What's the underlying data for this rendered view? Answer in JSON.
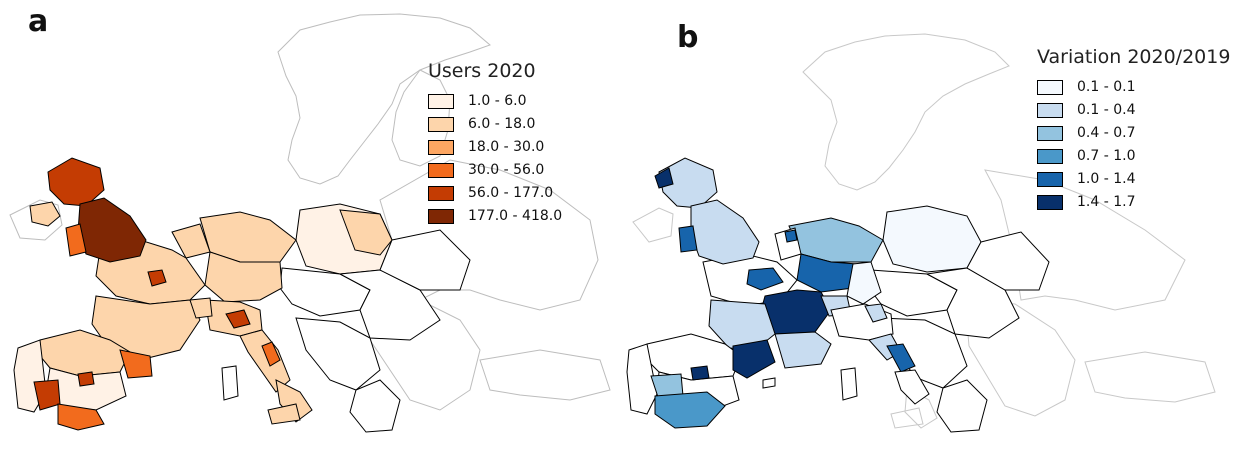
{
  "panels": [
    {
      "letter": "a",
      "legend": {
        "title": "Users 2020",
        "entries": [
          {
            "label": "1.0 - 6.0",
            "color": "#fff2e6"
          },
          {
            "label": "6.0 - 18.0",
            "color": "#fdd5ab"
          },
          {
            "label": "18.0 - 30.0",
            "color": "#fda662"
          },
          {
            "label": "30.0 - 56.0",
            "color": "#f26b1d"
          },
          {
            "label": "56.0 - 177.0",
            "color": "#c43c03"
          },
          {
            "label": "177.0 - 418.0",
            "color": "#7f2704"
          }
        ]
      }
    },
    {
      "letter": "b",
      "legend": {
        "title": "Variation 2020/2019",
        "entries": [
          {
            "label": "0.1 - 0.1",
            "color": "#f4f9fe"
          },
          {
            "label": "0.1 - 0.4",
            "color": "#c8dcf0"
          },
          {
            "label": "0.4 - 0.7",
            "color": "#93c3df"
          },
          {
            "label": "0.7 - 1.0",
            "color": "#4a98c9"
          },
          {
            "label": "1.0 - 1.4",
            "color": "#1764ab"
          },
          {
            "label": "1.4 - 1.7",
            "color": "#08306b"
          }
        ]
      }
    }
  ]
}
